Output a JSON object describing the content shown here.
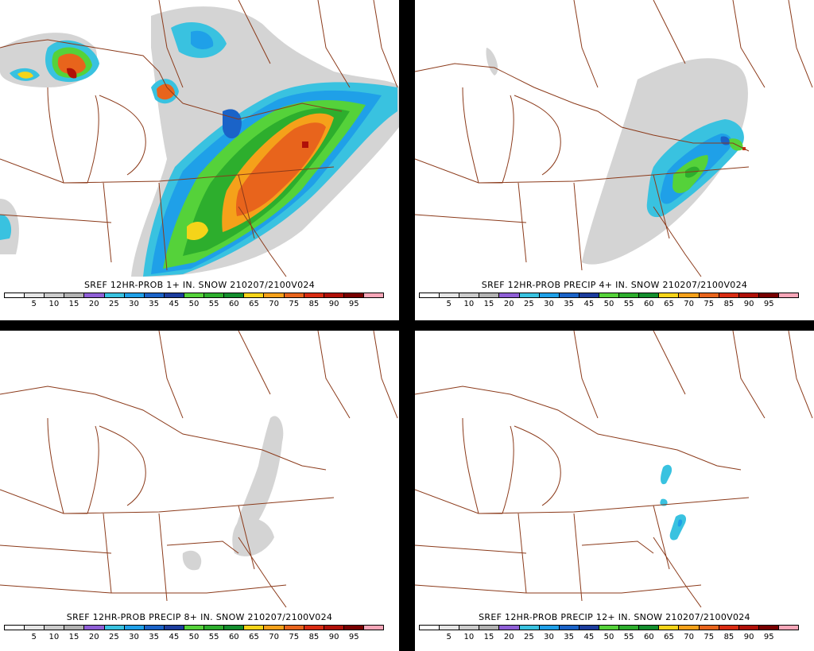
{
  "panels": [
    {
      "title": "SREF 12HR-PROB 1+ IN. SNOW 210207/2100V024"
    },
    {
      "title": "SREF 12HR-PROB PRECIP 4+ IN. SNOW 210207/2100V024"
    },
    {
      "title": "SREF 12HR-PROB PRECIP 8+ IN. SNOW 210207/2100V024"
    },
    {
      "title": "SREF 12HR-PROB PRECIP 12+ IN. SNOW 210207/2100V024"
    }
  ],
  "colorbar": {
    "labels": [
      "5",
      "10",
      "15",
      "20",
      "25",
      "30",
      "35",
      "45",
      "50",
      "55",
      "60",
      "65",
      "70",
      "75",
      "85",
      "90",
      "95"
    ],
    "colors": [
      "#ffffff",
      "#e6e6e6",
      "#cccccc",
      "#b3b3b3",
      "#8f5fd6",
      "#39c2e0",
      "#1fa0e8",
      "#1a63c8",
      "#1c3d9e",
      "#55d23a",
      "#2dae2d",
      "#138e2d",
      "#f5d419",
      "#f5a11a",
      "#e8641c",
      "#d92c12",
      "#b01008",
      "#780000",
      "#f7a6b8"
    ]
  },
  "colors": {
    "background": "#000000",
    "panel": "#ffffff",
    "boundaries": "#8b3a1a"
  }
}
